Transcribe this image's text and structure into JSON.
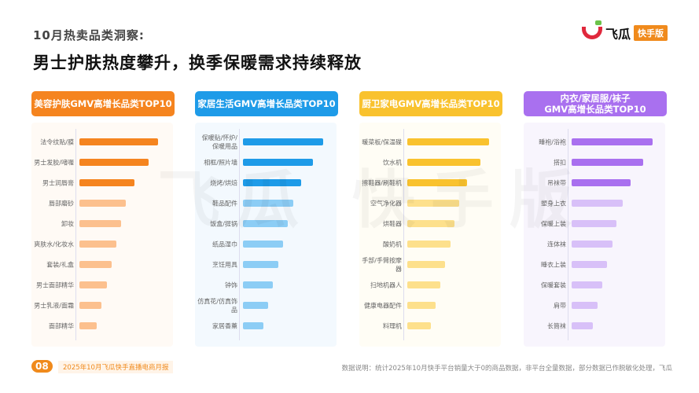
{
  "header": {
    "subtitle": "10月热卖品类洞察:",
    "title": "男士护肤热度攀升，换季保暖需求持续释放"
  },
  "logo": {
    "name": "飞瓜",
    "badge": "快手版"
  },
  "watermark": "飞瓜 快手版",
  "footer": {
    "page": "08",
    "report": "2025年10月飞瓜快手直播电商月报",
    "note": "数据说明：统计2025年10月快手平台销量大于0的商品数据，非平台全量数据，部分数据已作脱敏化处理，飞瓜"
  },
  "chart_data": [
    {
      "type": "bar",
      "orientation": "horizontal",
      "title": "美容护肤GMV高增长品类TOP10",
      "color": "#f5841f",
      "light": "#fcc08e",
      "bg": "#fffaf5",
      "categories": [
        "法令纹贴/膜",
        "男士发胶/啫喱",
        "男士润唇膏",
        "唇部磨砂",
        "卸妆",
        "爽肤水/化妆水",
        "套装/礼盒",
        "男士面部精华",
        "男士乳液/面霜",
        "面部精华"
      ],
      "values": [
        100,
        88,
        70,
        59,
        53,
        47,
        41,
        35,
        28,
        22
      ]
    },
    {
      "type": "bar",
      "orientation": "horizontal",
      "title": "家居生活GMV高增长品类TOP10",
      "color": "#1e9be8",
      "light": "#8ccdf5",
      "bg": "#f3f9fe",
      "categories": [
        "保暖贴/怀炉/保暖用品",
        "相框/照片墙",
        "烧烤/烘焙",
        "鞋品配件",
        "饭盒/提锅",
        "纸品湿巾",
        "烹饪用具",
        "钟饰",
        "仿真花/仿真饰品",
        "家居香薰"
      ],
      "values": [
        102,
        89,
        74,
        64,
        57,
        51,
        45,
        38,
        32,
        26
      ]
    },
    {
      "type": "bar",
      "orientation": "horizontal",
      "title": "厨卫家电GMV高增长品类TOP10",
      "color": "#f9c22e",
      "light": "#fde08c",
      "bg": "#fffdf5",
      "categories": [
        "暖菜板/保温碟",
        "饮水机",
        "擦鞋器/刷鞋机",
        "空气净化器",
        "烘鞋器",
        "酸奶机",
        "手部/手臂按摩器",
        "扫地机器人",
        "健康电器配件",
        "料理机"
      ],
      "values": [
        104,
        93,
        76,
        66,
        60,
        55,
        48,
        42,
        36,
        30
      ]
    },
    {
      "type": "bar",
      "orientation": "horizontal",
      "title": "内衣/家居服/袜子\nGMV高增长品类TOP10",
      "color": "#a970ef",
      "light": "#d8c0f8",
      "bg": "#f8f5fd",
      "categories": [
        "睡袍/浴袍",
        "搭扣",
        "吊袜带",
        "塑身上衣",
        "保暖上装",
        "连体袜",
        "睡衣上装",
        "保暖套装",
        "肩带",
        "长筒袜"
      ],
      "values": [
        103,
        91,
        75,
        65,
        57,
        52,
        45,
        39,
        33,
        27
      ]
    }
  ]
}
